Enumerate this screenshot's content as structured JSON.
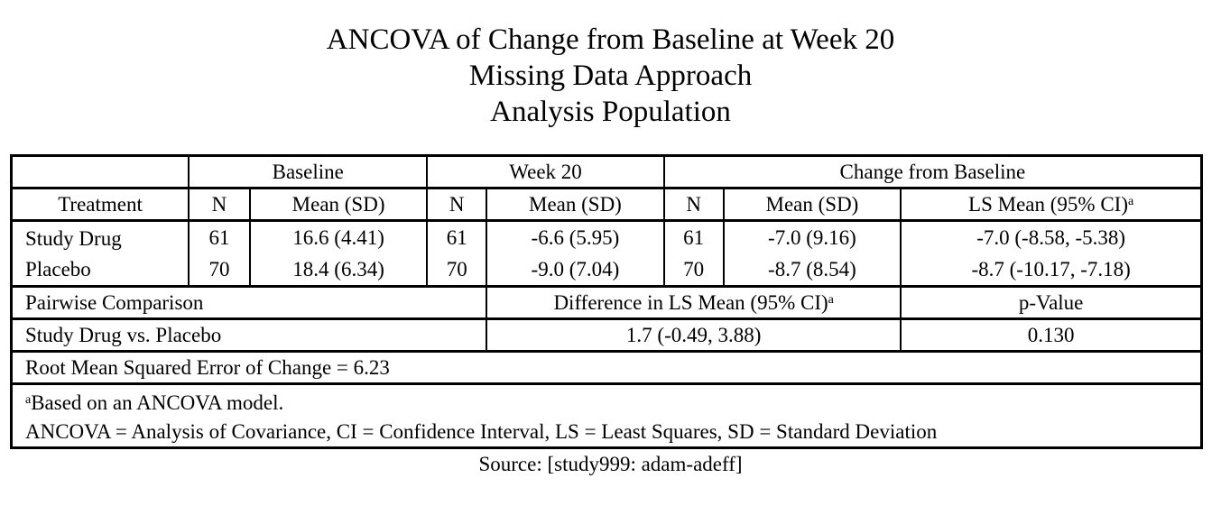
{
  "title": {
    "line1": "ANCOVA of Change from Baseline at Week 20",
    "line2": "Missing Data Approach",
    "line3": "Analysis Population"
  },
  "groups": {
    "baseline": "Baseline",
    "week20": "Week 20",
    "change": "Change from Baseline"
  },
  "columns": {
    "treatment": "Treatment",
    "n": "N",
    "mean_sd": "Mean (SD)",
    "ls_mean": "LS Mean (95% CI)",
    "footnote_mark": "a"
  },
  "rows": [
    {
      "treatment": "Study Drug",
      "b_n": "61",
      "b_mean": "16.6 (4.41)",
      "w_n": "61",
      "w_mean": "-6.6 (5.95)",
      "c_n": "61",
      "c_mean": "-7.0 (9.16)",
      "c_ls": "-7.0 (-8.58, -5.38)"
    },
    {
      "treatment": "Placebo",
      "b_n": "70",
      "b_mean": "18.4 (6.34)",
      "w_n": "70",
      "w_mean": "-9.0 (7.04)",
      "c_n": "70",
      "c_mean": "-8.7 (8.54)",
      "c_ls": "-8.7 (-10.17, -7.18)"
    }
  ],
  "pairwise": {
    "label": "Pairwise Comparison",
    "diff_label": "Difference in LS Mean (95% CI)",
    "pvalue_label": "p-Value",
    "comparison": "Study Drug vs. Placebo",
    "diff_value": "1.7 (-0.49, 3.88)",
    "pvalue": "0.130"
  },
  "rmse": "Root Mean Squared Error of Change = 6.23",
  "footnotes": {
    "mark": "a",
    "note_a": "Based on an ANCOVA  model.",
    "abbrev": "ANCOVA  = Analysis of Covariance, CI =  Confidence Interval, LS = Least Squares, SD = Standard Deviation"
  },
  "source": "Source: [study999: adam-adeff]"
}
